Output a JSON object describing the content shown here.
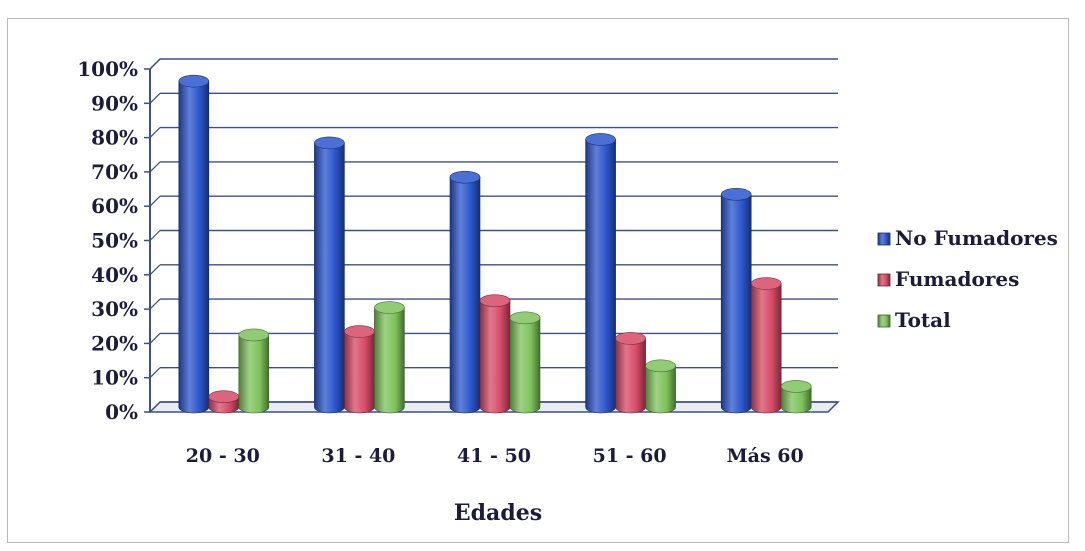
{
  "chart_data": {
    "type": "bar",
    "title": "",
    "xlabel": "Edades",
    "ylabel": "",
    "categories": [
      "20 - 30",
      "31 - 40",
      "41 - 50",
      "51 - 60",
      "Más 60"
    ],
    "series": [
      {
        "name": "No Fumadores",
        "values": [
          95,
          77,
          67,
          78,
          62
        ],
        "color": "#2b55cc"
      },
      {
        "name": "Fumadores",
        "values": [
          3,
          22,
          31,
          20,
          36
        ],
        "color": "#d64a66"
      },
      {
        "name": "Total",
        "values": [
          21,
          29,
          26,
          12,
          6
        ],
        "color": "#7ec25b"
      }
    ],
    "yticks": [
      "0%",
      "10%",
      "20%",
      "30%",
      "40%",
      "50%",
      "60%",
      "70%",
      "80%",
      "90%",
      "100%"
    ],
    "ylim": [
      0,
      100
    ],
    "grid": true,
    "legend_position": "right"
  }
}
